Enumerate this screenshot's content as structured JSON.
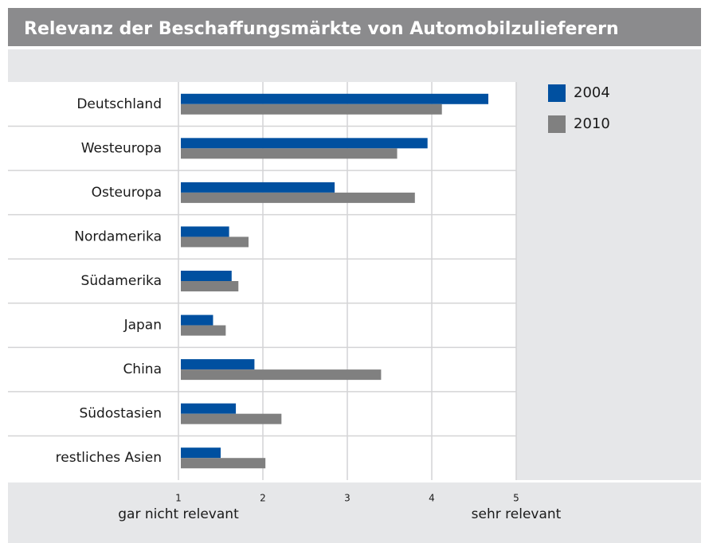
{
  "chart_data": {
    "type": "hbar",
    "title": "Relevanz der Beschaffungsmärkte von Automobilzulieferern",
    "categories": [
      "Deutschland",
      "Westeuropa",
      "Osteuropa",
      "Nordamerika",
      "Südamerika",
      "Japan",
      "China",
      "Südostasien",
      "restliches Asien"
    ],
    "series": [
      {
        "name": "2004",
        "color": "#0050a0",
        "values": [
          4.67,
          3.95,
          2.85,
          1.6,
          1.63,
          1.41,
          1.9,
          1.68,
          1.5
        ]
      },
      {
        "name": "2010",
        "color": "#808080",
        "values": [
          4.12,
          3.59,
          3.8,
          1.83,
          1.71,
          1.56,
          3.4,
          2.22,
          2.03
        ]
      }
    ],
    "xlim": [
      1,
      5
    ],
    "xticks": [
      1,
      2,
      3,
      4,
      5
    ],
    "annotations": [
      "gar nicht relevant",
      "sehr relevant"
    ],
    "grid": true,
    "legend": "top-right"
  }
}
